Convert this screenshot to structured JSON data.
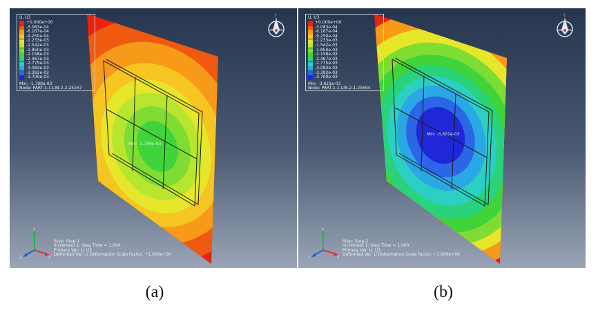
{
  "figure_caption_a": "(a)",
  "figure_caption_b": "(b)",
  "panels": [
    {
      "label_key": "a",
      "variable_title": "U, U3",
      "legend_values": [
        "+0.000e+00",
        "-3.083e-04",
        "-6.167e-04",
        "-9.250e-04",
        "-1.233e-03",
        "-1.542e-03",
        "-1.850e-03",
        "-2.158e-03",
        "-2.467e-03",
        "-2.775e-03",
        "-3.083e-03",
        "-3.392e-03",
        "-3.700e-03"
      ],
      "legend_colors": [
        "#e8230f",
        "#f05a10",
        "#f79a1a",
        "#f5c622",
        "#e6e62a",
        "#b8e62e",
        "#7fdc32",
        "#3fd43a",
        "#2ad27c",
        "#2ccfc3",
        "#2aa8e4",
        "#2a66e6",
        "#1f27d8"
      ],
      "min_text": "Min: -1.790e-03",
      "node_text": "Node: PART-1-1-LIN-2-2.25167",
      "plot_min_label": "Min: -1.790e-03",
      "step_lines": [
        "Step: Step-1",
        "Increment    1: Step Time =    1.000",
        "Primary Var: U, U3",
        "Deformed Var: U   Deformation Scale Factor: +1.000e+00"
      ]
    },
    {
      "label_key": "b",
      "variable_title": "U, U3",
      "legend_values": [
        "+0.000e+00",
        "-3.083e-04",
        "-6.167e-04",
        "-9.250e-04",
        "-1.233e-03",
        "-1.542e-03",
        "-1.850e-03",
        "-2.158e-03",
        "-2.467e-03",
        "-2.775e-03",
        "-3.083e-03",
        "-3.392e-03",
        "-3.700e-03"
      ],
      "legend_colors": [
        "#e8230f",
        "#f05a10",
        "#f79a1a",
        "#f5c622",
        "#e6e62a",
        "#b8e62e",
        "#7fdc32",
        "#3fd43a",
        "#2ad27c",
        "#2ccfc3",
        "#2aa8e4",
        "#2a66e6",
        "#1f27d8"
      ],
      "min_text": "Min: -3.621e-03",
      "node_text": "Node: PART-1-1-LIN-2-1.25694",
      "plot_min_label": "Min: -3.621e-03",
      "step_lines": [
        "Step: Step-2",
        "Increment    1: Step Time =    1.000",
        "Primary Var: U, U3",
        "Deformed Var: U   Deformation Scale Factor: +1.000e+00"
      ]
    }
  ],
  "triad_labels": {
    "x": "X",
    "y": "Y",
    "z": "Z"
  },
  "compass_label": "Y"
}
